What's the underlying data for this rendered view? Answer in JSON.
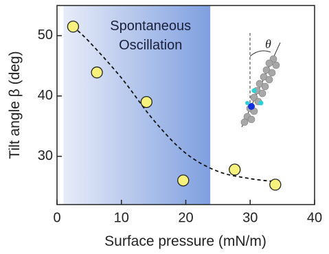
{
  "chart_data": {
    "type": "scatter",
    "x_label": "Surface pressure (mN/m)",
    "y_label": "Tilt angle β (deg)",
    "annotation": [
      "Spontaneous",
      "Oscillation"
    ],
    "inset_label": "θ",
    "xlim": [
      0,
      40
    ],
    "xticks": [
      0,
      10,
      20,
      30,
      40
    ],
    "ylim": [
      22,
      55
    ],
    "yticks": [
      30,
      40,
      50
    ],
    "shaded_xrange": [
      1,
      23.8
    ],
    "series": [
      {
        "color": "#f7f27e",
        "x": [
          2.5,
          6.2,
          13.9,
          19.6,
          27.6,
          33.9
        ],
        "values": [
          51.5,
          43.9,
          39.0,
          26.0,
          27.8,
          25.3
        ]
      }
    ],
    "fit": {
      "color": "#111111",
      "x": [
        2.5,
        5,
        10,
        15,
        20,
        25,
        30,
        34
      ],
      "values": [
        51.5,
        49,
        43,
        36,
        30.5,
        27.5,
        26.3,
        25.8
      ]
    }
  }
}
